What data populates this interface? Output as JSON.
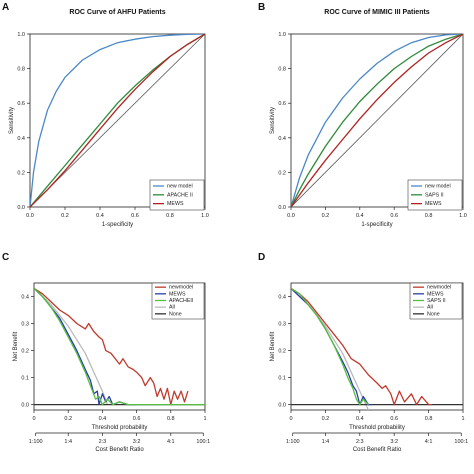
{
  "chart_data": [
    {
      "panel": "A",
      "type": "line",
      "title": "ROC Curve of AHFU Patients",
      "xlabel": "1-specificity",
      "ylabel": "Sensitivity",
      "xlim": [
        0,
        1
      ],
      "ylim": [
        0,
        1
      ],
      "xticks": [
        "0.0",
        "0.2",
        "0.4",
        "0.6",
        "0.8",
        "1.0"
      ],
      "yticks": [
        "0.0",
        "0.2",
        "0.4",
        "0.6",
        "0.8",
        "1.0"
      ],
      "legend_position": "bottom-right",
      "diagonal": {
        "x": [
          0,
          1
        ],
        "y": [
          0,
          1
        ],
        "color": "#5a5a5a"
      },
      "series": [
        {
          "name": "new model",
          "color": "#4a88c8",
          "x": [
            0,
            0.02,
            0.05,
            0.1,
            0.15,
            0.2,
            0.3,
            0.4,
            0.5,
            0.6,
            0.7,
            0.8,
            0.9,
            1.0
          ],
          "y": [
            0,
            0.2,
            0.38,
            0.56,
            0.67,
            0.75,
            0.85,
            0.91,
            0.95,
            0.97,
            0.985,
            0.993,
            0.998,
            1.0
          ]
        },
        {
          "name": "APACHE II",
          "color": "#2e8b3a",
          "x": [
            0,
            0.05,
            0.1,
            0.2,
            0.3,
            0.4,
            0.5,
            0.6,
            0.7,
            0.8,
            0.9,
            1.0
          ],
          "y": [
            0,
            0.06,
            0.12,
            0.24,
            0.36,
            0.48,
            0.6,
            0.7,
            0.79,
            0.87,
            0.94,
            1.0
          ]
        },
        {
          "name": "MEWS",
          "color": "#b22222",
          "x": [
            0,
            0.05,
            0.1,
            0.2,
            0.3,
            0.4,
            0.5,
            0.6,
            0.7,
            0.8,
            0.9,
            1.0
          ],
          "y": [
            0,
            0.05,
            0.1,
            0.21,
            0.33,
            0.45,
            0.57,
            0.68,
            0.78,
            0.87,
            0.94,
            1.0
          ]
        }
      ]
    },
    {
      "panel": "B",
      "type": "line",
      "title": "ROC Curve of MIMIC III Patients",
      "xlabel": "1-specificity",
      "ylabel": "Sensitivity",
      "xlim": [
        0,
        1
      ],
      "ylim": [
        0,
        1
      ],
      "xticks": [
        "0.0",
        "0.2",
        "0.4",
        "0.6",
        "0.8",
        "1.0"
      ],
      "yticks": [
        "0.0",
        "0.2",
        "0.4",
        "0.6",
        "0.8",
        "1.0"
      ],
      "legend_position": "bottom-right",
      "diagonal": {
        "x": [
          0,
          1
        ],
        "y": [
          0,
          1
        ],
        "color": "#5a5a5a"
      },
      "series": [
        {
          "name": "new model",
          "color": "#4a88c8",
          "x": [
            0,
            0.05,
            0.1,
            0.2,
            0.3,
            0.4,
            0.5,
            0.6,
            0.7,
            0.8,
            0.9,
            1.0
          ],
          "y": [
            0,
            0.17,
            0.3,
            0.49,
            0.63,
            0.74,
            0.83,
            0.9,
            0.95,
            0.98,
            0.995,
            1.0
          ]
        },
        {
          "name": "SAPS II",
          "color": "#2e8b3a",
          "x": [
            0,
            0.05,
            0.1,
            0.2,
            0.3,
            0.4,
            0.5,
            0.6,
            0.7,
            0.8,
            0.9,
            1.0
          ],
          "y": [
            0,
            0.1,
            0.19,
            0.35,
            0.49,
            0.61,
            0.71,
            0.8,
            0.87,
            0.93,
            0.97,
            1.0
          ]
        },
        {
          "name": "MEWS",
          "color": "#b22222",
          "x": [
            0,
            0.05,
            0.1,
            0.2,
            0.3,
            0.4,
            0.5,
            0.6,
            0.7,
            0.8,
            0.9,
            1.0
          ],
          "y": [
            0,
            0.07,
            0.14,
            0.27,
            0.39,
            0.51,
            0.62,
            0.72,
            0.81,
            0.89,
            0.95,
            1.0
          ]
        }
      ]
    },
    {
      "panel": "C",
      "type": "line",
      "title": "",
      "xlabel": "Threshold probability",
      "ylabel": "Net Benefit",
      "x2label": "Cost Benefit Ratio",
      "xlim": [
        0,
        1
      ],
      "ylim": [
        -0.02,
        0.45
      ],
      "xticks": [
        "0",
        "0.2",
        "0.4",
        "0.6",
        "0.8",
        "1"
      ],
      "yticks": [
        "0.0",
        "0.1",
        "0.2",
        "0.3",
        "0.4"
      ],
      "x2ticks": [
        "1:100",
        "1:4",
        "2:3",
        "3:2",
        "4:1",
        "100:1"
      ],
      "x2tick_positions": [
        0.0099,
        0.2,
        0.4,
        0.6,
        0.8,
        0.99
      ],
      "legend_position": "top-right",
      "series": [
        {
          "name": "newmodel",
          "color": "#c0392b",
          "x": [
            0,
            0.05,
            0.1,
            0.15,
            0.2,
            0.25,
            0.3,
            0.32,
            0.35,
            0.38,
            0.4,
            0.42,
            0.45,
            0.5,
            0.52,
            0.55,
            0.58,
            0.6,
            0.63,
            0.65,
            0.68,
            0.7,
            0.72,
            0.74,
            0.76,
            0.78,
            0.8,
            0.82,
            0.84,
            0.86,
            0.88,
            0.9
          ],
          "y": [
            0.43,
            0.41,
            0.38,
            0.35,
            0.33,
            0.3,
            0.28,
            0.3,
            0.27,
            0.25,
            0.24,
            0.2,
            0.19,
            0.15,
            0.17,
            0.14,
            0.13,
            0.12,
            0.1,
            0.07,
            0.1,
            0.08,
            0.03,
            0.06,
            0.02,
            0.06,
            0.0,
            0.05,
            0.02,
            0.05,
            0.01,
            0.05
          ]
        },
        {
          "name": "MEWS",
          "color": "#2b3ea8",
          "x": [
            0,
            0.05,
            0.1,
            0.15,
            0.2,
            0.25,
            0.3,
            0.33,
            0.35,
            0.37,
            0.38,
            0.4,
            0.42,
            0.44,
            0.46,
            0.5,
            0.55,
            0.6
          ],
          "y": [
            0.43,
            0.4,
            0.36,
            0.32,
            0.26,
            0.2,
            0.13,
            0.09,
            0.04,
            0.05,
            0.0,
            0.04,
            0.01,
            0.03,
            0.0,
            0.01,
            0.0,
            0.0
          ]
        },
        {
          "name": "APACHEII",
          "color": "#55c040",
          "x": [
            0,
            0.05,
            0.1,
            0.15,
            0.2,
            0.25,
            0.3,
            0.33,
            0.36,
            0.38,
            0.4,
            0.43,
            0.46,
            0.5,
            0.55,
            0.6,
            0.7,
            0.8,
            0.9,
            1.0
          ],
          "y": [
            0.43,
            0.4,
            0.36,
            0.31,
            0.25,
            0.19,
            0.12,
            0.07,
            0.02,
            0.03,
            0.0,
            0.02,
            0.0,
            0.01,
            0.0,
            0.0,
            0.0,
            0.0,
            0.0,
            0.0
          ]
        },
        {
          "name": "All",
          "color": "#bbbbbb",
          "x": [
            0,
            0.1,
            0.2,
            0.3,
            0.4,
            0.43
          ],
          "y": [
            0.43,
            0.37,
            0.29,
            0.19,
            0.05,
            0.0
          ]
        },
        {
          "name": "None",
          "color": "#333333",
          "x": [
            0,
            1
          ],
          "y": [
            0,
            0
          ]
        }
      ]
    },
    {
      "panel": "D",
      "type": "line",
      "title": "",
      "xlabel": "Threshold probability",
      "ylabel": "Net Benefit",
      "x2label": "Cost Benefit Ratio",
      "xlim": [
        0,
        1
      ],
      "ylim": [
        -0.02,
        0.45
      ],
      "xticks": [
        "0",
        "0.2",
        "0.4",
        "0.6",
        "0.8",
        "1"
      ],
      "yticks": [
        "0.0",
        "0.1",
        "0.2",
        "0.3",
        "0.4"
      ],
      "x2ticks": [
        "1:100",
        "1:4",
        "2:3",
        "3:2",
        "4:1",
        "100:1"
      ],
      "x2tick_positions": [
        0.0099,
        0.2,
        0.4,
        0.6,
        0.8,
        0.99
      ],
      "legend_position": "top-right",
      "series": [
        {
          "name": "newmodel",
          "color": "#c0392b",
          "x": [
            0,
            0.05,
            0.1,
            0.15,
            0.2,
            0.25,
            0.3,
            0.35,
            0.4,
            0.45,
            0.5,
            0.53,
            0.55,
            0.58,
            0.6,
            0.63,
            0.66,
            0.7,
            0.73,
            0.76,
            0.8,
            0.82
          ],
          "y": [
            0.43,
            0.41,
            0.38,
            0.34,
            0.3,
            0.26,
            0.22,
            0.17,
            0.15,
            0.11,
            0.08,
            0.06,
            0.07,
            0.04,
            0.0,
            0.05,
            0.01,
            0.04,
            0.0,
            0.03,
            0.0,
            0.0
          ]
        },
        {
          "name": "MEWS",
          "color": "#2b3ea8",
          "x": [
            0,
            0.05,
            0.1,
            0.15,
            0.2,
            0.25,
            0.3,
            0.33,
            0.36,
            0.38,
            0.4,
            0.42,
            0.45,
            0.47
          ],
          "y": [
            0.43,
            0.4,
            0.37,
            0.33,
            0.28,
            0.22,
            0.16,
            0.12,
            0.07,
            0.05,
            0.0,
            0.03,
            0.0,
            0.0
          ]
        },
        {
          "name": "SAPS II",
          "color": "#55c040",
          "x": [
            0,
            0.05,
            0.1,
            0.15,
            0.2,
            0.25,
            0.3,
            0.33,
            0.36,
            0.38,
            0.4,
            0.42,
            0.45
          ],
          "y": [
            0.43,
            0.41,
            0.37,
            0.33,
            0.28,
            0.22,
            0.15,
            0.1,
            0.06,
            0.02,
            0.0,
            0.02,
            0.0
          ]
        },
        {
          "name": "All",
          "color": "#bbbbbb",
          "x": [
            0,
            0.1,
            0.2,
            0.3,
            0.4,
            0.45
          ],
          "y": [
            0.43,
            0.37,
            0.29,
            0.19,
            0.05,
            -0.02
          ]
        },
        {
          "name": "None",
          "color": "#333333",
          "x": [
            0,
            1
          ],
          "y": [
            0,
            0
          ]
        }
      ]
    }
  ]
}
